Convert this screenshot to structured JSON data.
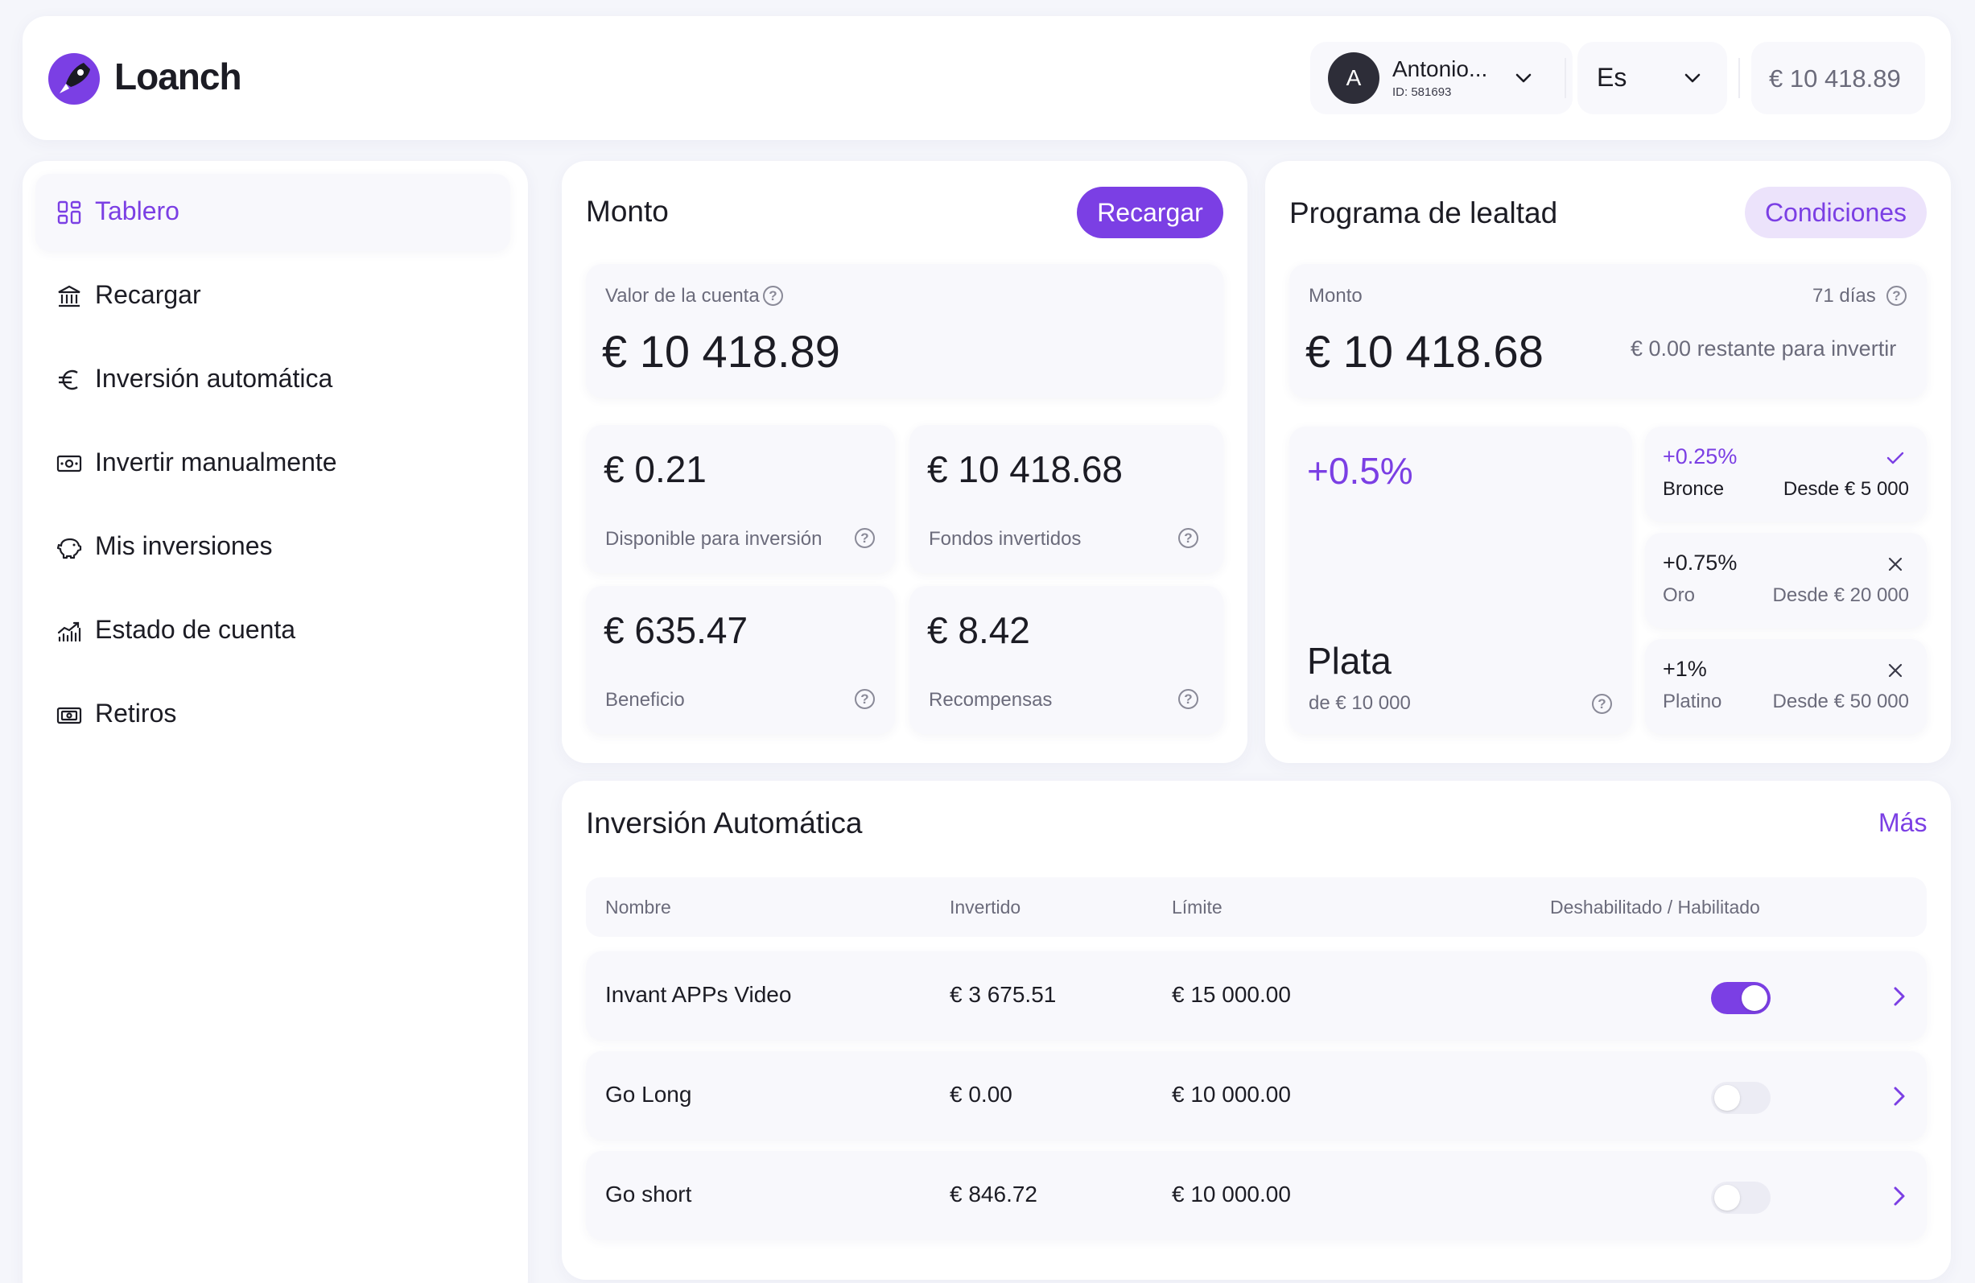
{
  "brand": {
    "name": "Loanch"
  },
  "header": {
    "user": {
      "initial": "A",
      "name": "Antonio...",
      "id": "ID: 581693"
    },
    "language": "Es",
    "balance": "€ 10 418.89"
  },
  "sidebar": {
    "items": [
      {
        "label": "Tablero",
        "icon": "grid-icon"
      },
      {
        "label": "Recargar",
        "icon": "bank-icon"
      },
      {
        "label": "Inversión automática",
        "icon": "euro-icon"
      },
      {
        "label": "Invertir manualmente",
        "icon": "cash-icon"
      },
      {
        "label": "Mis inversiones",
        "icon": "piggy-bank-icon"
      },
      {
        "label": "Estado de cuenta",
        "icon": "chart-icon"
      },
      {
        "label": "Retiros",
        "icon": "wallet-icon"
      }
    ]
  },
  "monto": {
    "title": "Monto",
    "recharge_label": "Recargar",
    "account_value_label": "Valor de la cuenta",
    "account_value": "€ 10 418.89",
    "tiles": [
      {
        "value": "€ 0.21",
        "label": "Disponible para inversión"
      },
      {
        "value": "€ 10 418.68",
        "label": "Fondos invertidos"
      },
      {
        "value": "€ 635.47",
        "label": "Beneficio"
      },
      {
        "value": "€ 8.42",
        "label": "Recompensas"
      }
    ]
  },
  "loyalty": {
    "title": "Programa de lealtad",
    "conditions_label": "Condiciones",
    "amount_label": "Monto",
    "days": "71 días",
    "amount": "€ 10 418.68",
    "remaining": "€ 0.00 restante para invertir",
    "current": {
      "rate": "+0.5%",
      "level": "Plata",
      "threshold": "de € 10 000"
    },
    "levels": [
      {
        "rate": "+0.25%",
        "name": "Bronce",
        "from": "Desde € 5 000",
        "status": "check-icon"
      },
      {
        "rate": "+0.75%",
        "name": "Oro",
        "from": "Desde € 20 000",
        "status": "x-icon"
      },
      {
        "rate": "+1%",
        "name": "Platino",
        "from": "Desde € 50 000",
        "status": "x-icon"
      }
    ]
  },
  "auto": {
    "title": "Inversión Automática",
    "more_label": "Más",
    "columns": {
      "name": "Nombre",
      "invested": "Invertido",
      "limit": "Límite",
      "toggle": "Deshabilitado / Habilitado"
    },
    "rows": [
      {
        "name": "Invant APPs Video",
        "invested": "€ 3 675.51",
        "limit": "€ 15 000.00",
        "enabled": true
      },
      {
        "name": "Go Long",
        "invested": "€ 0.00",
        "limit": "€ 10 000.00",
        "enabled": false
      },
      {
        "name": "Go short",
        "invested": "€ 846.72",
        "limit": "€ 10 000.00",
        "enabled": false
      }
    ]
  },
  "colors": {
    "accent": "#7b3fe4",
    "accent_soft": "#ece3fb",
    "background": "#f5f6fb"
  }
}
